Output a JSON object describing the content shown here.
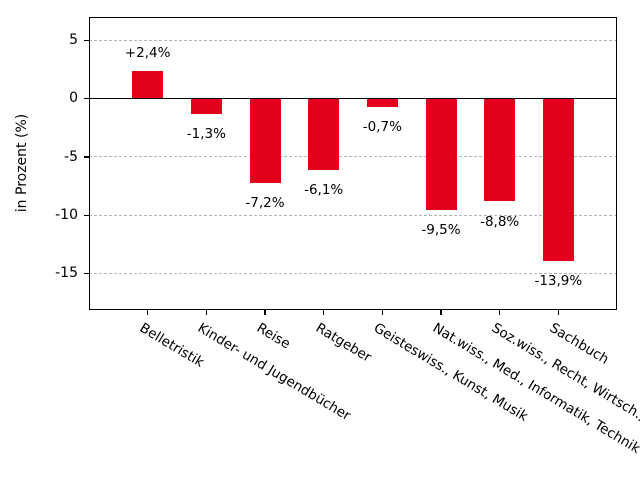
{
  "chart_data": {
    "type": "bar",
    "title": "",
    "ylabel": "in Prozent (%)",
    "xlabel": "",
    "categories": [
      "Belletristik",
      "Kinder- und Jugendbücher",
      "Reise",
      "Ratgeber",
      "Geisteswiss., Kunst, Musik",
      "Nat.wiss., Med., Informatik, Technik",
      "Soz.wiss., Recht, Wirtsch.,",
      "Sachbuch"
    ],
    "values": [
      2.4,
      -1.3,
      -7.2,
      -6.1,
      -0.7,
      -9.5,
      -8.8,
      -13.9
    ],
    "value_labels": [
      "+2,4%",
      "-1,3%",
      "-7,2%",
      "-6,1%",
      "-0,7%",
      "-9,5%",
      "-8,8%",
      "-13,9%"
    ],
    "yticks": [
      5,
      0,
      -5,
      -10,
      -15
    ],
    "ytick_labels": [
      "5",
      "0",
      "-5",
      "-10",
      "-15"
    ],
    "ylim": [
      -18.1,
      7.0
    ],
    "xtick_rotation_deg": -31,
    "grid": {
      "axis": "y",
      "style": "dotted",
      "color": "#b5b5b5",
      "skip_at_zero": true
    },
    "zero_line": true,
    "legend": null,
    "bar_color": "#e2001b",
    "axis_color": "#000000",
    "text_color": "#000000",
    "background": "#ffffff"
  }
}
